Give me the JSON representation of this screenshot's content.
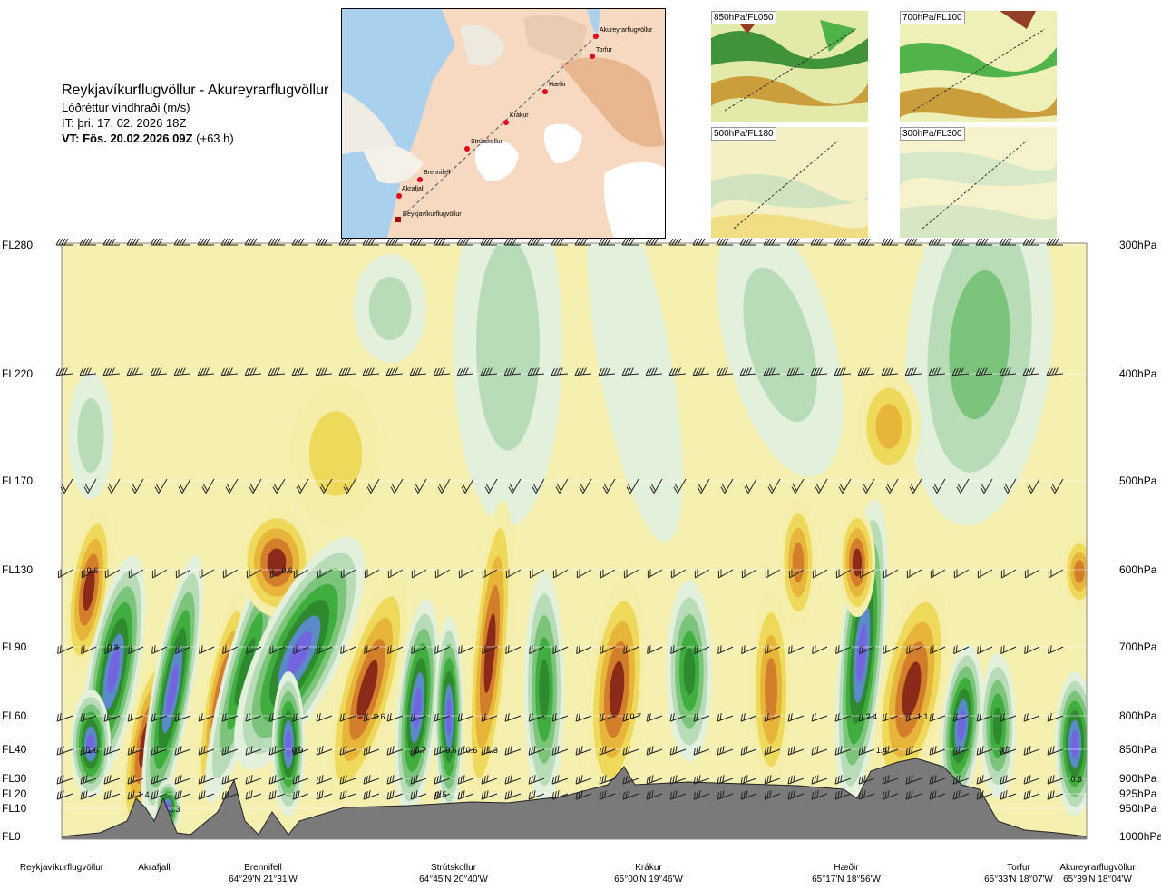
{
  "title": {
    "route": "Reykjavíkurflugvöllur - Akureyrarflugvöllur",
    "variable": "Lóðréttur vindhraði (m/s)",
    "issue_time": "IT: þri. 17. 02. 2026 18Z",
    "valid_prefix": "VT: Fös. 20.02.2026 09Z",
    "valid_suffix": "(+63 h)"
  },
  "map": {
    "places": [
      "Akureyrarflugvöllur",
      "Torfur",
      "Hæðir",
      "Krákur",
      "Strútskollur",
      "Brennifell",
      "Akrafjall",
      "Reykjavíkurflugvöllur"
    ]
  },
  "thumbnails": [
    "850hPa/FL050",
    "700hPa/FL100",
    "500hPa/FL180",
    "300hPa/FL300"
  ],
  "chart_data": {
    "type": "heatmap",
    "title": "Lóðréttur vindhraði (m/s)",
    "left_axis_labels": [
      "FL280",
      "FL220",
      "FL170",
      "FL130",
      "FL90",
      "FL60",
      "FL40",
      "FL30",
      "FL20",
      "FL10",
      "FL0"
    ],
    "right_axis_labels": [
      "300hPa",
      "400hPa",
      "500hPa",
      "600hPa",
      "700hPa",
      "800hPa",
      "850hPa",
      "900hPa",
      "925hPa",
      "950hPa",
      "1000hPa"
    ],
    "locations": [
      {
        "name": "Reykjavíkurflugvöllur",
        "coord": ""
      },
      {
        "name": "Akrafjall",
        "coord": ""
      },
      {
        "name": "Brennifell",
        "coord": "64°29'N 21°31'W"
      },
      {
        "name": "Strútskollur",
        "coord": "64°45'N 20°40'W"
      },
      {
        "name": "Krákur",
        "coord": "65°00'N 19°46'W"
      },
      {
        "name": "Hæðir",
        "coord": "65°17'N 18°56'W"
      },
      {
        "name": "Torfur",
        "coord": "65°33'N 18°07'W"
      },
      {
        "name": "Akureyrarflugvöllur",
        "coord": "65°39'N 18°04'W"
      }
    ],
    "annotations": [
      {
        "text": "0.6",
        "level": "FL130",
        "pos": 0.03
      },
      {
        "text": "0.6",
        "level": "FL130",
        "pos": 0.22
      },
      {
        "text": "0.8",
        "level": "FL90",
        "pos": 0.05
      },
      {
        "text": "1.0",
        "level": "FL40",
        "pos": 0.03
      },
      {
        "text": "1.3",
        "level": "FL10",
        "pos": 0.11
      },
      {
        "text": "1.4",
        "level": "FL20",
        "pos": 0.08
      },
      {
        "text": "0.9",
        "level": "FL40",
        "pos": 0.23
      },
      {
        "text": "0.6",
        "level": "FL60",
        "pos": 0.31
      },
      {
        "text": "0.7",
        "level": "FL40",
        "pos": 0.35
      },
      {
        "text": "0.6",
        "level": "FL40",
        "pos": 0.38
      },
      {
        "text": "0.6",
        "level": "FL40",
        "pos": 0.4
      },
      {
        "text": "1.3",
        "level": "FL40",
        "pos": 0.42
      },
      {
        "text": "0.5",
        "level": "FL20",
        "pos": 0.37
      },
      {
        "text": "0.7",
        "level": "FL60",
        "pos": 0.56
      },
      {
        "text": "2.4",
        "level": "FL60",
        "pos": 0.79
      },
      {
        "text": "1.1",
        "level": "FL60",
        "pos": 0.84
      },
      {
        "text": "1.4",
        "level": "FL40",
        "pos": 0.8
      },
      {
        "text": "0.7",
        "level": "FL40",
        "pos": 0.92
      },
      {
        "text": "0.6",
        "level": "FL30",
        "pos": 0.99
      }
    ],
    "colorscale": [
      "#2f8a2f",
      "#3fae3f",
      "#7cc47c",
      "#b8dcb8",
      "#e2f0dc",
      "#fbfbe6",
      "#f5eea8",
      "#eed95a",
      "#e7b53a",
      "#d27e2a",
      "#9e3d1c"
    ],
    "strong_colors": {
      "up_strong": "#7364e0",
      "up_mid": "#5a8ac8",
      "down_strong": "#8b2a18"
    }
  }
}
